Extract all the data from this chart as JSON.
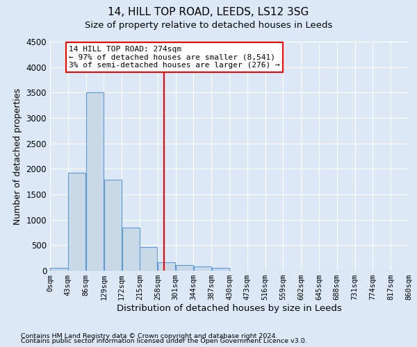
{
  "title": "14, HILL TOP ROAD, LEEDS, LS12 3SG",
  "subtitle": "Size of property relative to detached houses in Leeds",
  "xlabel": "Distribution of detached houses by size in Leeds",
  "ylabel": "Number of detached properties",
  "footnote1": "Contains HM Land Registry data © Crown copyright and database right 2024.",
  "footnote2": "Contains public sector information licensed under the Open Government Licence v3.0.",
  "bar_values": [
    50,
    1920,
    3500,
    1790,
    840,
    460,
    160,
    110,
    80,
    60,
    0,
    0,
    0,
    0,
    0,
    0,
    0,
    0,
    0,
    0
  ],
  "bin_edges": [
    0,
    43,
    86,
    129,
    172,
    215,
    258,
    301,
    344,
    387,
    430,
    473,
    516,
    559,
    602,
    645,
    688,
    731,
    774,
    817,
    860
  ],
  "tick_labels": [
    "0sqm",
    "43sqm",
    "86sqm",
    "129sqm",
    "172sqm",
    "215sqm",
    "258sqm",
    "301sqm",
    "344sqm",
    "387sqm",
    "430sqm",
    "473sqm",
    "516sqm",
    "559sqm",
    "602sqm",
    "645sqm",
    "688sqm",
    "731sqm",
    "774sqm",
    "817sqm",
    "860sqm"
  ],
  "bar_color": "#c9d9e8",
  "bar_edge_color": "#5b9bd5",
  "vline_x": 274,
  "vline_color": "red",
  "annotation_text": "14 HILL TOP ROAD: 274sqm\n← 97% of detached houses are smaller (8,541)\n3% of semi-detached houses are larger (276) →",
  "annotation_box_color": "white",
  "annotation_box_edge": "red",
  "ylim": [
    0,
    4500
  ],
  "background_color": "#dce8f5",
  "plot_bg_color": "#dce8f5",
  "grid_color": "#ffffff",
  "title_fontsize": 11,
  "subtitle_fontsize": 9.5,
  "ylabel_fontsize": 9,
  "xlabel_fontsize": 9.5,
  "tick_fontsize": 7.5,
  "footnote_fontsize": 6.8,
  "annotation_fontsize": 8
}
